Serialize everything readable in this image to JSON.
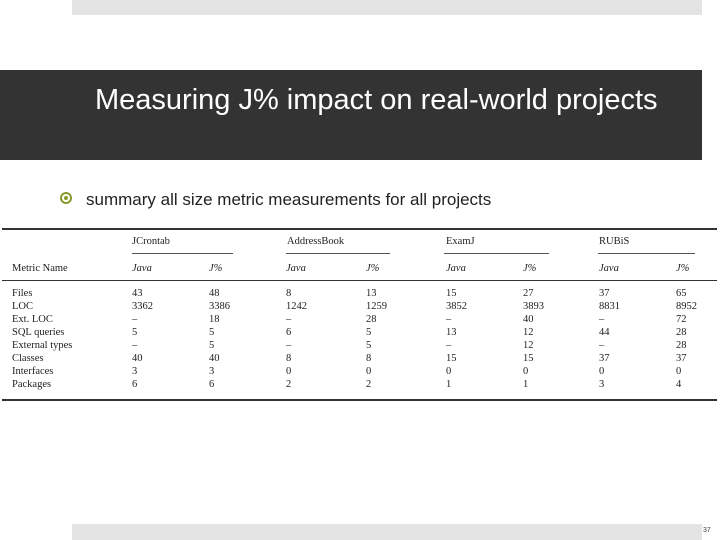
{
  "slide": {
    "title": "Measuring J% impact on real-world projects",
    "bullet": "summary all size metric measurements for all projects",
    "page_number": "37"
  },
  "table": {
    "groups": [
      "JCrontab",
      "AddressBook",
      "ExamJ",
      "RUBiS"
    ],
    "metric_header": "Metric Name",
    "subheaders": [
      "Java",
      "J%"
    ],
    "rows": [
      {
        "name": "Files",
        "values": [
          "43",
          "48",
          "8",
          "13",
          "15",
          "27",
          "37",
          "65"
        ]
      },
      {
        "name": "LOC",
        "values": [
          "3362",
          "3386",
          "1242",
          "1259",
          "3852",
          "3893",
          "8831",
          "8952"
        ]
      },
      {
        "name": "Ext. LOC",
        "values": [
          "–",
          "18",
          "–",
          "28",
          "–",
          "40",
          "–",
          "72"
        ]
      },
      {
        "name": "SQL queries",
        "values": [
          "5",
          "5",
          "6",
          "5",
          "13",
          "12",
          "44",
          "28"
        ]
      },
      {
        "name": "External types",
        "values": [
          "–",
          "5",
          "–",
          "5",
          "–",
          "12",
          "–",
          "28"
        ]
      },
      {
        "name": "Classes",
        "values": [
          "40",
          "40",
          "8",
          "8",
          "15",
          "15",
          "37",
          "37"
        ]
      },
      {
        "name": "Interfaces",
        "values": [
          "3",
          "3",
          "0",
          "0",
          "0",
          "0",
          "0",
          "0"
        ]
      },
      {
        "name": "Packages",
        "values": [
          "6",
          "6",
          "2",
          "2",
          "1",
          "1",
          "3",
          "4"
        ]
      }
    ]
  }
}
